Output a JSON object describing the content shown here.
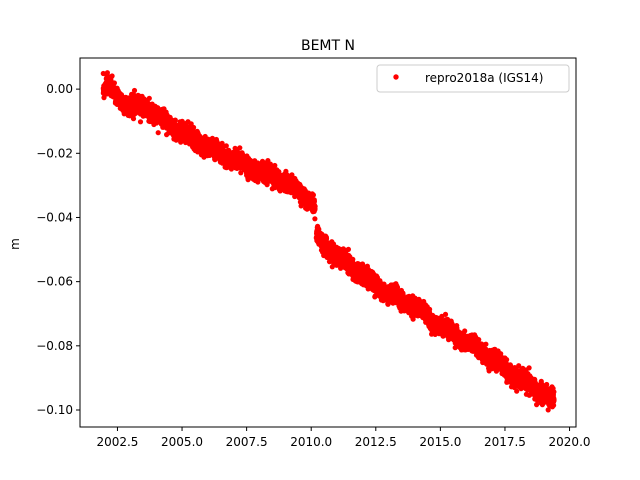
{
  "chart_data": {
    "type": "scatter",
    "title": "BEMT N",
    "xlabel": "",
    "ylabel": "m",
    "xlim": [
      2001.05,
      2020.25
    ],
    "ylim": [
      -0.1053,
      0.0097
    ],
    "xticks": [
      2002.5,
      2005.0,
      2007.5,
      2010.0,
      2012.5,
      2015.0,
      2017.5,
      2020.0
    ],
    "xtick_labels": [
      "2002.5",
      "2005.0",
      "2007.5",
      "2010.0",
      "2012.5",
      "2015.0",
      "2017.5",
      "2020.0"
    ],
    "yticks": [
      0.0,
      -0.02,
      -0.04,
      -0.06,
      -0.08,
      -0.1
    ],
    "ytick_labels": [
      "0.00",
      "−0.02",
      "−0.04",
      "−0.06",
      "−0.08",
      "−0.10"
    ],
    "grid": false,
    "legend_position": "upper-right",
    "series": [
      {
        "name": "repro2018a (IGS14)",
        "color": "#ff0000",
        "marker": "circle",
        "x_range": [
          2001.95,
          2019.4
        ],
        "segments": [
          {
            "x": [
              2001.95,
              2002.1,
              2002.5,
              2003.0,
              2003.5,
              2004.0,
              2004.5,
              2005.0,
              2005.5,
              2006.0,
              2006.5,
              2007.0,
              2007.5,
              2008.0,
              2008.5,
              2009.0,
              2009.5,
              2010.0,
              2010.15
            ],
            "y": [
              0.0,
              0.001,
              -0.003,
              -0.005,
              -0.005,
              -0.008,
              -0.011,
              -0.013,
              -0.016,
              -0.018,
              -0.02,
              -0.022,
              -0.024,
              -0.026,
              -0.027,
              -0.029,
              -0.032,
              -0.035,
              -0.037
            ]
          },
          {
            "x": [
              2010.2,
              2010.5,
              2011.0,
              2011.5,
              2012.0,
              2012.5,
              2013.0,
              2013.5,
              2014.0,
              2014.5,
              2015.0,
              2015.5,
              2016.0,
              2016.5,
              2017.0,
              2017.5,
              2018.0,
              2018.5,
              2019.0,
              2019.4
            ],
            "y": [
              -0.045,
              -0.049,
              -0.052,
              -0.055,
              -0.058,
              -0.061,
              -0.064,
              -0.066,
              -0.068,
              -0.071,
              -0.074,
              -0.076,
              -0.079,
              -0.081,
              -0.084,
              -0.087,
              -0.09,
              -0.092,
              -0.095,
              -0.097
            ]
          }
        ],
        "scatter_spread_m": 0.0022
      }
    ]
  }
}
